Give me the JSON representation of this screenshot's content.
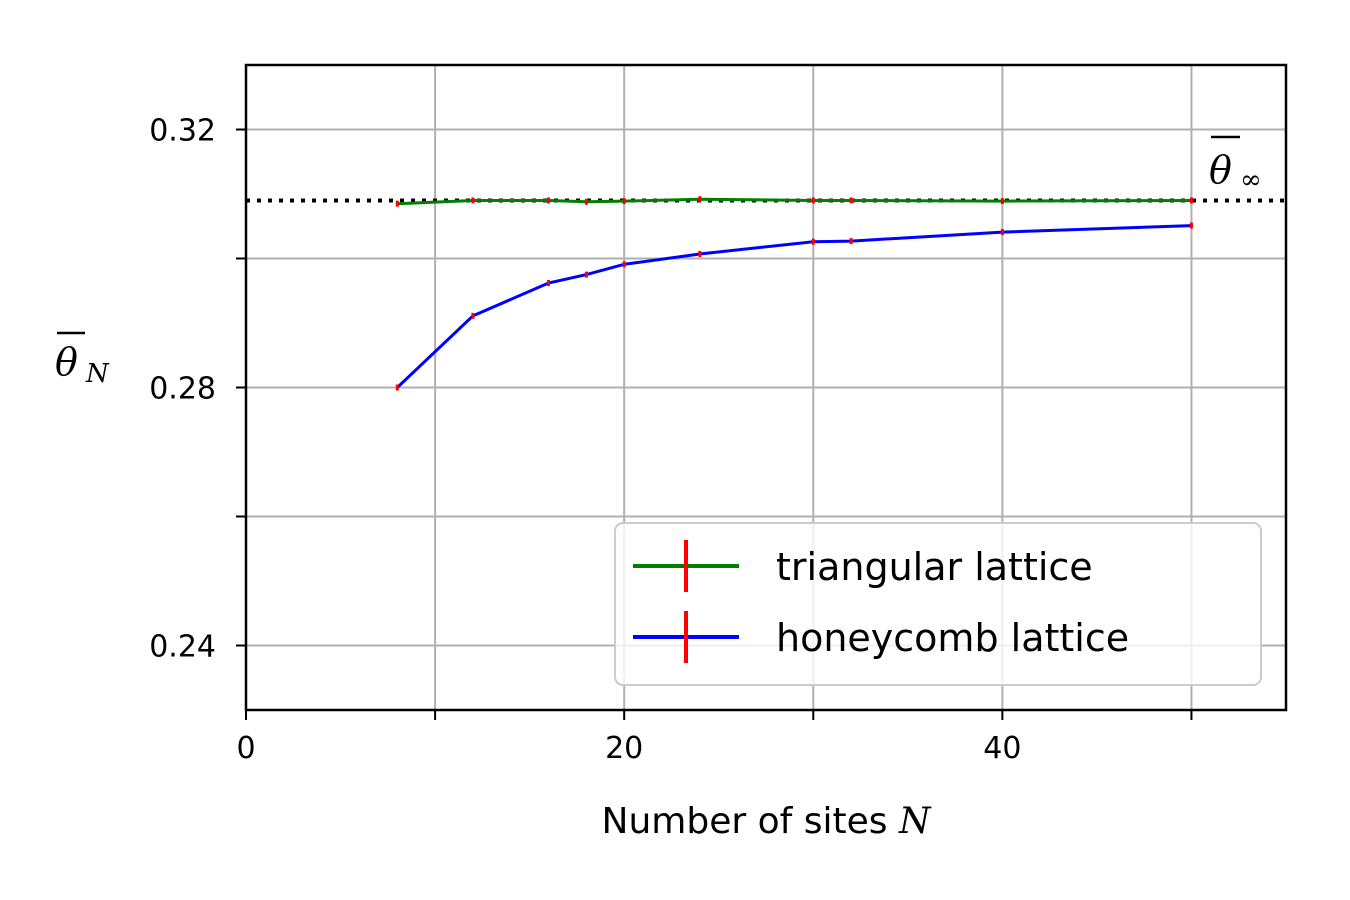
{
  "chart_data": {
    "type": "line",
    "xlabel": "Number of sites",
    "xlabel_var": "N",
    "ylabel_symbol": "θ",
    "ylabel_sub": "N",
    "xlim": [
      0,
      55
    ],
    "ylim": [
      0.23,
      0.33
    ],
    "x_ticks": [
      {
        "value": 0,
        "label": "0"
      },
      {
        "value": 10,
        "label": ""
      },
      {
        "value": 20,
        "label": "20"
      },
      {
        "value": 30,
        "label": ""
      },
      {
        "value": 40,
        "label": "40"
      },
      {
        "value": 50,
        "label": ""
      }
    ],
    "y_ticks": [
      {
        "value": 0.24,
        "label": "0.24"
      },
      {
        "value": 0.26,
        "label": ""
      },
      {
        "value": 0.28,
        "label": "0.28"
      },
      {
        "value": 0.3,
        "label": ""
      },
      {
        "value": 0.32,
        "label": "0.32"
      }
    ],
    "grid": true,
    "legend_position": "lower-right",
    "reference_line": {
      "y": 0.309,
      "style": "dotted",
      "color": "#000000",
      "label_symbol": "θ",
      "label_sub": "∞"
    },
    "error_bar_color": "#ff0000",
    "series": [
      {
        "name": "triangular lattice",
        "color": "#008000",
        "x": [
          8,
          12,
          16,
          18,
          20,
          24,
          30,
          32,
          40,
          50
        ],
        "y": [
          0.3085,
          0.309,
          0.309,
          0.3088,
          0.3089,
          0.3092,
          0.309,
          0.309,
          0.3089,
          0.309
        ]
      },
      {
        "name": "honeycomb lattice",
        "color": "#0000ff",
        "x": [
          8,
          12,
          16,
          18,
          20,
          24,
          30,
          32,
          40,
          50
        ],
        "y": [
          0.28,
          0.2911,
          0.2962,
          0.2975,
          0.2991,
          0.3007,
          0.3026,
          0.3027,
          0.3041,
          0.3051
        ]
      }
    ]
  }
}
